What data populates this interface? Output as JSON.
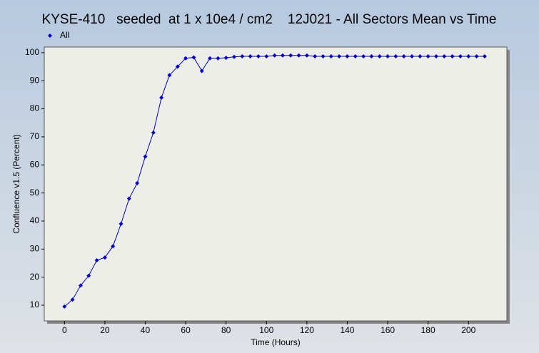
{
  "chart_data": {
    "type": "line",
    "title": "KYSE-410   seeded  at 1 x 10e4 / cm2    12J021 - All Sectors Mean vs Time",
    "x_label": "Time (Hours)",
    "y_label": "Confluence v1.5 (Percent)",
    "x": [
      0,
      4,
      8,
      12,
      16,
      20,
      24,
      28,
      32,
      36,
      40,
      44,
      48,
      52,
      56,
      60,
      64,
      68,
      72,
      76,
      80,
      84,
      88,
      92,
      96,
      100,
      104,
      108,
      112,
      116,
      120,
      124,
      128,
      132,
      136,
      140,
      144,
      148,
      152,
      156,
      160,
      164,
      168,
      172,
      176,
      180,
      184,
      188,
      192,
      196,
      200,
      204,
      208
    ],
    "series": [
      {
        "name": "All",
        "color": "#0000cc",
        "values": [
          9.5,
          12,
          17,
          20.5,
          26,
          27,
          31,
          39,
          48,
          53.5,
          63,
          71.5,
          84,
          92,
          95,
          98,
          98.3,
          93.5,
          98,
          98,
          98.2,
          98.5,
          98.7,
          98.7,
          98.7,
          98.7,
          99,
          99,
          99,
          99,
          99,
          98.7,
          98.7,
          98.7,
          98.7,
          98.7,
          98.7,
          98.7,
          98.7,
          98.7,
          98.7,
          98.7,
          98.7,
          98.7,
          98.7,
          98.7,
          98.7,
          98.7,
          98.7,
          98.7,
          98.7,
          98.7,
          98.7
        ]
      }
    ],
    "xlim": [
      -10,
      219
    ],
    "ylim": [
      4.4,
      102
    ],
    "xticks": [
      0,
      20,
      40,
      60,
      80,
      100,
      120,
      140,
      160,
      180,
      200
    ],
    "yticks": [
      10,
      20,
      30,
      40,
      50,
      60,
      70,
      80,
      90,
      100
    ],
    "legend": "top-left"
  }
}
